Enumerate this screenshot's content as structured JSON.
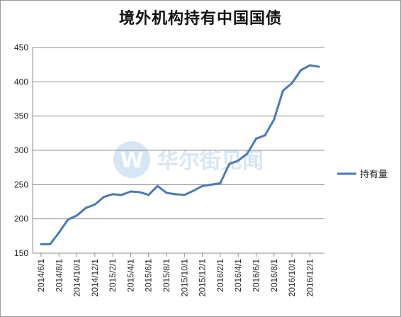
{
  "chart_data": {
    "type": "line",
    "title": "境外机构持有中国国债",
    "watermark": "华尔街见闻",
    "ylim": [
      150,
      450
    ],
    "yticks": [
      150,
      200,
      250,
      300,
      350,
      400,
      450
    ],
    "grid": true,
    "legend_position": "right",
    "colors": {
      "line": "#4a7ab5",
      "grid": "#8c8c8c",
      "watermark": "#d7e6f5"
    },
    "x": [
      "2014/6/1",
      "2014/7/1",
      "2014/8/1",
      "2014/9/1",
      "2014/10/1",
      "2014/11/1",
      "2014/12/1",
      "2015/1/1",
      "2015/2/1",
      "2015/3/1",
      "2015/4/1",
      "2015/5/1",
      "2015/6/1",
      "2015/7/1",
      "2015/8/1",
      "2015/9/1",
      "2015/10/1",
      "2015/11/1",
      "2015/12/1",
      "2016/1/1",
      "2016/2/1",
      "2016/3/1",
      "2016/4/1",
      "2016/5/1",
      "2016/6/1",
      "2016/7/1",
      "2016/8/1",
      "2016/9/1",
      "2016/10/1",
      "2016/11/1",
      "2016/12/1",
      "2017/1/1"
    ],
    "xtick_labels": [
      "2014/6/1",
      "2014/8/1",
      "2014/10/1",
      "2014/12/1",
      "2015/2/1",
      "2015/4/1",
      "2015/6/1",
      "2015/8/1",
      "2015/10/1",
      "2015/12/1",
      "2016/2/1",
      "2016/4/1",
      "2016/6/1",
      "2016/8/1",
      "2016/10/1",
      "2016/12/1"
    ],
    "series": [
      {
        "name": "持有量",
        "values": [
          163,
          163,
          180,
          199,
          205,
          216,
          221,
          232,
          236,
          235,
          240,
          239,
          235,
          248,
          238,
          236,
          235,
          241,
          248,
          250,
          252,
          280,
          285,
          295,
          317,
          322,
          345,
          387,
          398,
          417,
          424,
          422
        ]
      }
    ]
  }
}
